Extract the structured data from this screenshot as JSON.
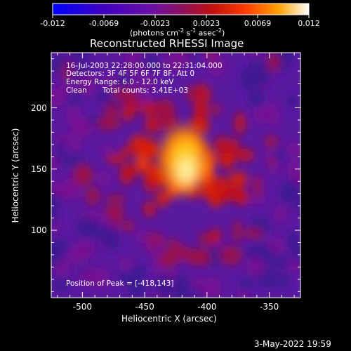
{
  "colorbar": {
    "ticks": [
      "-0.012",
      "-0.0069",
      "-0.0023",
      "0.0023",
      "0.0069",
      "0.012"
    ],
    "unit_label_parts": [
      "(photons cm",
      "-2",
      " s",
      "-1",
      " asec",
      "-2",
      ")"
    ]
  },
  "title": "Reconstructed RHESSI Image",
  "annotations": {
    "time_range": "16-Jul-2003 22:28:00.000 to 22:31:04.000",
    "detectors": "Detectors: 3F 4F 5F 6F 7F 8F, Att 0",
    "energy": "Energy Range: 6.0 - 12.0 keV",
    "algorithm": "Clean",
    "counts": "Total counts: 3.41E+03",
    "peak": "Position of Peak = [-418,143]"
  },
  "axes": {
    "xlabel": "Heliocentric X (arcsec)",
    "ylabel": "Heliocentric Y (arcsec)",
    "xticks": [
      -500,
      -450,
      -400,
      -350
    ],
    "yticks": [
      100,
      150,
      200
    ],
    "xlim": [
      -525,
      -325
    ],
    "ylim": [
      45,
      245
    ]
  },
  "footer": {
    "date": "3-May-2022 19:59"
  },
  "colors": {
    "background": "#000000",
    "foreground": "#ffffff",
    "colormap": [
      "#0000ff",
      "#5a00b4",
      "#7d0aa0",
      "#b4141e",
      "#ff3200",
      "#ff8c00",
      "#ffdc28",
      "#ffffe6"
    ]
  },
  "image_data": {
    "peak_position": [
      -418,
      143
    ]
  }
}
